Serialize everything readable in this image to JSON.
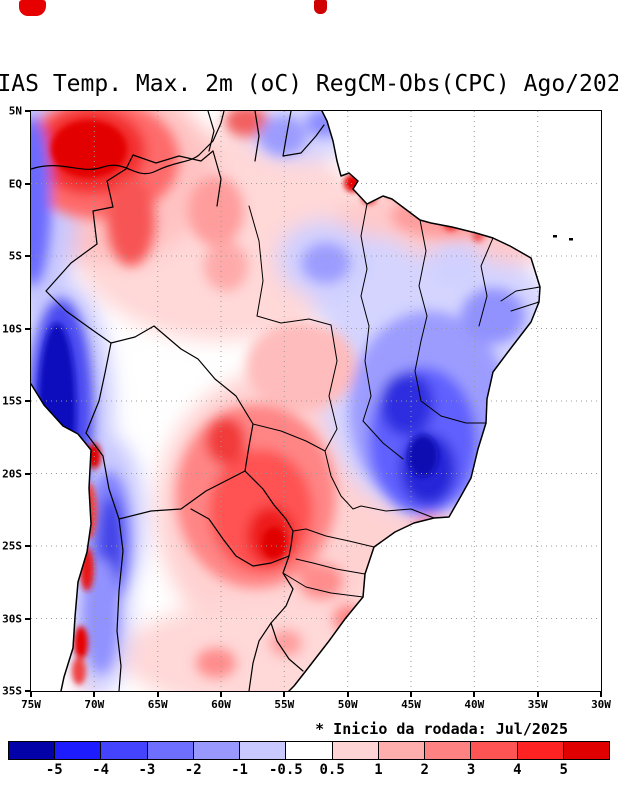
{
  "header": {
    "title": "IAS Temp. Max. 2m (oC) RegCM-Obs(CPC) Ago/202"
  },
  "map": {
    "lat_labels": [
      "5N",
      "EQ",
      "5S",
      "10S",
      "15S",
      "20S",
      "25S",
      "30S",
      "35S"
    ],
    "lon_labels": [
      "75W",
      "70W",
      "65W",
      "60W",
      "55W",
      "50W",
      "45W",
      "40W",
      "35W",
      "30W"
    ]
  },
  "footer": {
    "note": "* Inicio da rodada: Jul/2025"
  },
  "colorbar": {
    "tick_labels": [
      "-5",
      "-4",
      "-3",
      "-2",
      "-1",
      "-0.5",
      "0.5",
      "1",
      "2",
      "3",
      "4",
      "5"
    ],
    "segment_colors": [
      "#0202a8",
      "#1c1cff",
      "#4444ff",
      "#6e6eff",
      "#9898ff",
      "#c9c9ff",
      "#ffffff",
      "#ffd4d4",
      "#ffadad",
      "#ff8282",
      "#ff5454",
      "#ff2222",
      "#e00000"
    ],
    "accent_negative": "#0000b4",
    "accent_positive": "#e60000"
  },
  "chart_data": {
    "type": "heatmap",
    "title": "IAS Temp. Max. 2m (oC) RegCM-Obs(CPC) Ago/202",
    "units": "oC",
    "x_ticks": [
      "75W",
      "70W",
      "65W",
      "60W",
      "55W",
      "50W",
      "45W",
      "40W",
      "35W",
      "30W"
    ],
    "y_ticks": [
      "5N",
      "EQ",
      "5S",
      "10S",
      "15S",
      "20S",
      "25S",
      "30S",
      "35S"
    ],
    "scale_levels": [
      -5,
      -4,
      -3,
      -2,
      -1,
      -0.5,
      0.5,
      1,
      2,
      3,
      4,
      5
    ],
    "annotation": "* Inicio da rodada: Jul/2025",
    "legend_position": "bottom",
    "grid": "dotted"
  }
}
